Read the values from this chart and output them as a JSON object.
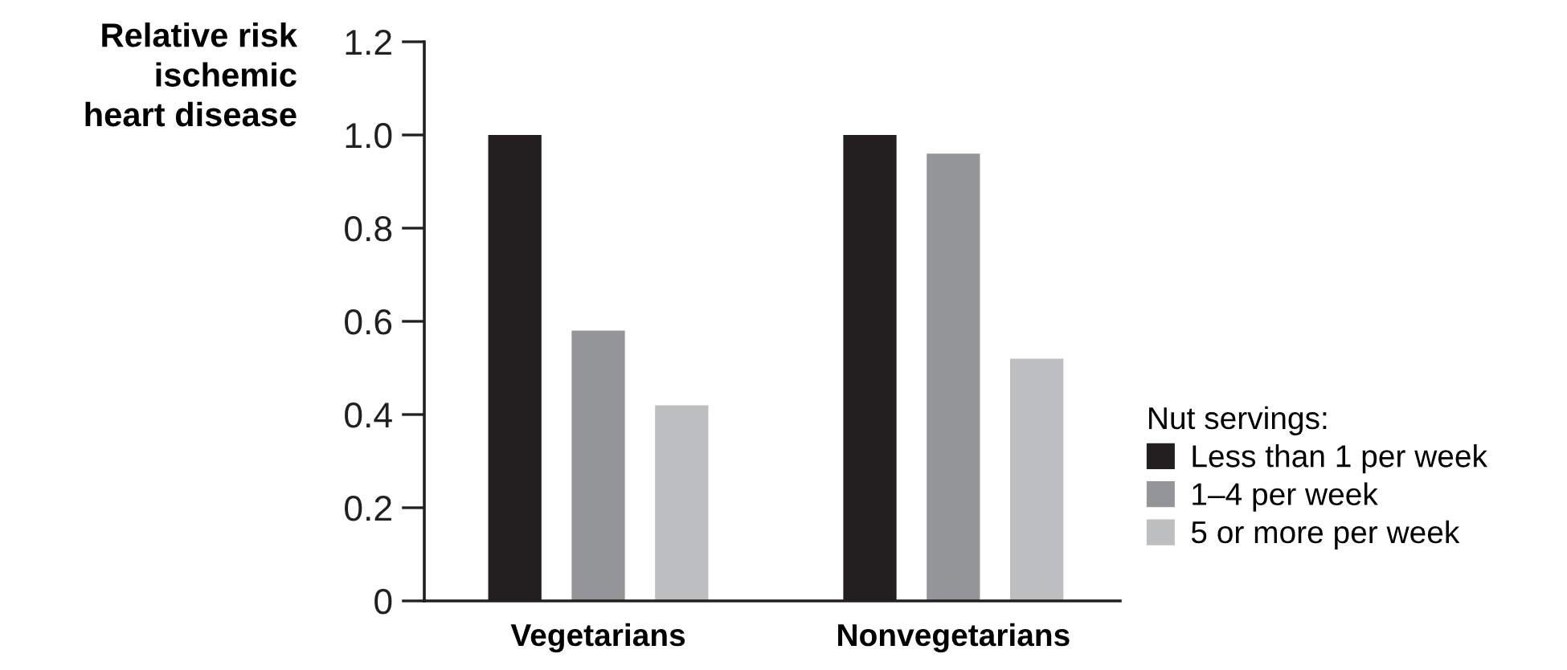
{
  "chart_data": {
    "type": "bar",
    "ylabel": "Relative risk\nischemic\nheart disease",
    "legend_title": "Nut servings:",
    "categories": [
      "Vegetarians",
      "Nonvegetarians"
    ],
    "series": [
      {
        "name": "Less than 1 per week",
        "color": "#231f20",
        "values": [
          1.0,
          1.0
        ]
      },
      {
        "name": "1–4 per week",
        "color": "#939598",
        "values": [
          0.58,
          0.96
        ]
      },
      {
        "name": "5 or more per week",
        "color": "#bcbec0",
        "values": [
          0.42,
          0.52
        ]
      }
    ],
    "ylim": [
      0,
      1.2
    ],
    "yticks": [
      0,
      0.2,
      0.4,
      0.6,
      0.8,
      {
        "value": 1,
        "label": "1.0"
      },
      1.2
    ],
    "grid": false,
    "legend": "right"
  }
}
